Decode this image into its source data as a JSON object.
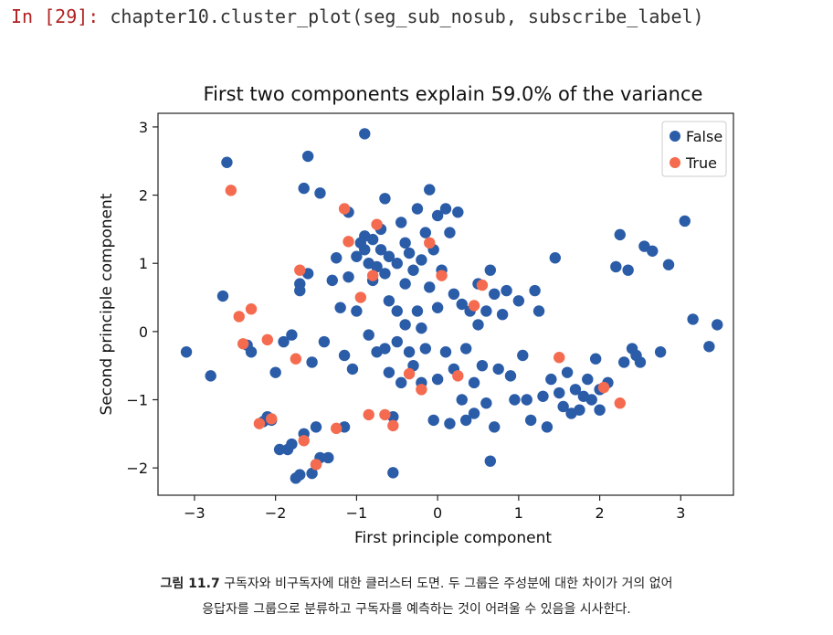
{
  "cell": {
    "prompt": "In [29]:",
    "code": "chapter10.cluster_plot(seg_sub_nosub, subscribe_label)"
  },
  "caption": {
    "label": "그림 11.7",
    "line1": "구독자와 비구독자에 대한 클러스터 도면. 두 그룹은 주성분에 대한 차이가 거의 없어",
    "line2": "응답자를 그룹으로 분류하고 구독자를 예측하는 것이 어려울 수 있음을 시사한다."
  },
  "chart_data": {
    "type": "scatter",
    "title": "First two components explain 59.0% of the variance",
    "xlabel": "First principle component",
    "ylabel": "Second principle component",
    "xlim": [
      -3.45,
      3.65
    ],
    "ylim": [
      -2.4,
      3.2
    ],
    "xticks": [
      -3,
      -2,
      -1,
      0,
      1,
      2,
      3
    ],
    "yticks": [
      -2,
      -1,
      0,
      1,
      2,
      3
    ],
    "grid": false,
    "legend_position": "top-right",
    "colors": {
      "False": "#2b5ca8",
      "True": "#f46b50"
    },
    "series": [
      {
        "name": "False",
        "points": [
          [
            -3.1,
            -0.3
          ],
          [
            -2.8,
            -0.65
          ],
          [
            -2.65,
            0.52
          ],
          [
            -2.6,
            2.48
          ],
          [
            -2.35,
            -0.2
          ],
          [
            -2.3,
            -0.3
          ],
          [
            -2.15,
            -1.32
          ],
          [
            -2.1,
            -1.25
          ],
          [
            -2.05,
            -1.3
          ],
          [
            -2.0,
            -0.6
          ],
          [
            -1.95,
            -1.73
          ],
          [
            -1.9,
            -0.15
          ],
          [
            -1.85,
            -1.73
          ],
          [
            -1.8,
            -0.05
          ],
          [
            -1.8,
            -1.65
          ],
          [
            -1.75,
            -2.15
          ],
          [
            -1.7,
            -2.1
          ],
          [
            -1.7,
            0.6
          ],
          [
            -1.7,
            0.7
          ],
          [
            -1.65,
            -1.5
          ],
          [
            -1.65,
            2.1
          ],
          [
            -1.6,
            2.57
          ],
          [
            -1.6,
            0.85
          ],
          [
            -1.55,
            -2.08
          ],
          [
            -1.55,
            -0.45
          ],
          [
            -1.5,
            -1.4
          ],
          [
            -1.5,
            -1.95
          ],
          [
            -1.45,
            -1.85
          ],
          [
            -1.45,
            2.03
          ],
          [
            -1.4,
            -0.15
          ],
          [
            -1.35,
            -1.85
          ],
          [
            -1.3,
            0.75
          ],
          [
            -1.25,
            1.08
          ],
          [
            -1.2,
            0.35
          ],
          [
            -1.15,
            -0.35
          ],
          [
            -1.15,
            -1.4
          ],
          [
            -1.1,
            0.8
          ],
          [
            -1.1,
            1.75
          ],
          [
            -1.05,
            -0.55
          ],
          [
            -1.0,
            1.1
          ],
          [
            -1.0,
            0.3
          ],
          [
            -0.95,
            1.3
          ],
          [
            -0.9,
            2.9
          ],
          [
            -0.9,
            1.4
          ],
          [
            -0.9,
            1.2
          ],
          [
            -0.85,
            1.0
          ],
          [
            -0.85,
            -0.05
          ],
          [
            -0.8,
            0.75
          ],
          [
            -0.8,
            1.35
          ],
          [
            -0.75,
            -0.3
          ],
          [
            -0.75,
            0.95
          ],
          [
            -0.7,
            1.5
          ],
          [
            -0.7,
            1.2
          ],
          [
            -0.65,
            -0.25
          ],
          [
            -0.65,
            0.85
          ],
          [
            -0.65,
            1.95
          ],
          [
            -0.6,
            -0.6
          ],
          [
            -0.6,
            1.1
          ],
          [
            -0.6,
            0.45
          ],
          [
            -0.55,
            -1.25
          ],
          [
            -0.55,
            -2.07
          ],
          [
            -0.5,
            0.3
          ],
          [
            -0.5,
            1.0
          ],
          [
            -0.5,
            -0.15
          ],
          [
            -0.45,
            1.6
          ],
          [
            -0.45,
            -0.75
          ],
          [
            -0.4,
            1.3
          ],
          [
            -0.4,
            0.1
          ],
          [
            -0.4,
            0.7
          ],
          [
            -0.35,
            -0.3
          ],
          [
            -0.35,
            1.15
          ],
          [
            -0.3,
            -0.5
          ],
          [
            -0.3,
            0.9
          ],
          [
            -0.25,
            0.3
          ],
          [
            -0.25,
            1.8
          ],
          [
            -0.2,
            -0.75
          ],
          [
            -0.2,
            1.05
          ],
          [
            -0.2,
            0.05
          ],
          [
            -0.15,
            -0.25
          ],
          [
            -0.15,
            1.45
          ],
          [
            -0.1,
            2.08
          ],
          [
            -0.1,
            0.65
          ],
          [
            -0.05,
            1.2
          ],
          [
            -0.05,
            -1.3
          ],
          [
            0.0,
            0.35
          ],
          [
            0.0,
            1.7
          ],
          [
            0.0,
            -0.7
          ],
          [
            0.05,
            0.9
          ],
          [
            0.1,
            1.8
          ],
          [
            0.1,
            -0.3
          ],
          [
            0.15,
            -1.35
          ],
          [
            0.15,
            1.45
          ],
          [
            0.2,
            -0.55
          ],
          [
            0.2,
            0.55
          ],
          [
            0.25,
            1.75
          ],
          [
            0.3,
            -1.0
          ],
          [
            0.3,
            0.4
          ],
          [
            0.35,
            -0.25
          ],
          [
            0.35,
            -1.3
          ],
          [
            0.4,
            0.3
          ],
          [
            0.45,
            -0.75
          ],
          [
            0.45,
            -1.2
          ],
          [
            0.5,
            0.1
          ],
          [
            0.5,
            0.7
          ],
          [
            0.55,
            -0.5
          ],
          [
            0.6,
            0.3
          ],
          [
            0.6,
            -1.05
          ],
          [
            0.65,
            0.9
          ],
          [
            0.65,
            -1.9
          ],
          [
            0.7,
            0.55
          ],
          [
            0.7,
            -1.4
          ],
          [
            0.75,
            -0.55
          ],
          [
            0.8,
            0.25
          ],
          [
            0.85,
            0.6
          ],
          [
            0.9,
            -0.65
          ],
          [
            0.95,
            -1.0
          ],
          [
            1.0,
            0.45
          ],
          [
            1.05,
            -0.35
          ],
          [
            1.1,
            -1.0
          ],
          [
            1.15,
            -1.3
          ],
          [
            1.2,
            0.6
          ],
          [
            1.25,
            0.3
          ],
          [
            1.3,
            -0.95
          ],
          [
            1.35,
            -1.4
          ],
          [
            1.4,
            -0.7
          ],
          [
            1.45,
            1.08
          ],
          [
            1.5,
            -0.9
          ],
          [
            1.55,
            -1.1
          ],
          [
            1.6,
            -0.6
          ],
          [
            1.65,
            -1.2
          ],
          [
            1.7,
            -0.85
          ],
          [
            1.75,
            -1.15
          ],
          [
            1.8,
            -0.95
          ],
          [
            1.85,
            -0.7
          ],
          [
            1.9,
            -1.0
          ],
          [
            1.95,
            -0.4
          ],
          [
            2.0,
            -1.15
          ],
          [
            2.0,
            -0.85
          ],
          [
            2.1,
            -0.75
          ],
          [
            2.2,
            0.95
          ],
          [
            2.25,
            1.42
          ],
          [
            2.3,
            -0.45
          ],
          [
            2.35,
            0.9
          ],
          [
            2.4,
            -0.25
          ],
          [
            2.45,
            -0.35
          ],
          [
            2.5,
            -0.45
          ],
          [
            2.55,
            1.25
          ],
          [
            2.65,
            1.18
          ],
          [
            2.75,
            -0.3
          ],
          [
            2.85,
            0.98
          ],
          [
            3.05,
            1.62
          ],
          [
            3.15,
            0.18
          ],
          [
            3.35,
            -0.22
          ],
          [
            3.45,
            0.1
          ]
        ]
      },
      {
        "name": "True",
        "points": [
          [
            -2.55,
            2.07
          ],
          [
            -2.45,
            0.22
          ],
          [
            -2.4,
            -0.18
          ],
          [
            -2.3,
            0.33
          ],
          [
            -2.2,
            -1.35
          ],
          [
            -2.1,
            -0.12
          ],
          [
            -2.05,
            -1.28
          ],
          [
            -1.75,
            -0.4
          ],
          [
            -1.7,
            0.9
          ],
          [
            -1.65,
            -1.6
          ],
          [
            -1.5,
            -1.95
          ],
          [
            -1.25,
            -1.42
          ],
          [
            -1.15,
            1.8
          ],
          [
            -1.1,
            1.32
          ],
          [
            -0.95,
            0.5
          ],
          [
            -0.85,
            -1.22
          ],
          [
            -0.8,
            0.82
          ],
          [
            -0.75,
            1.57
          ],
          [
            -0.65,
            -1.22
          ],
          [
            -0.55,
            -1.38
          ],
          [
            -0.35,
            -0.62
          ],
          [
            -0.2,
            -0.85
          ],
          [
            -0.1,
            1.3
          ],
          [
            0.05,
            0.82
          ],
          [
            0.25,
            -0.65
          ],
          [
            0.45,
            0.38
          ],
          [
            0.55,
            0.68
          ],
          [
            1.5,
            -0.38
          ],
          [
            2.05,
            -0.82
          ],
          [
            2.25,
            -1.05
          ]
        ]
      }
    ]
  }
}
